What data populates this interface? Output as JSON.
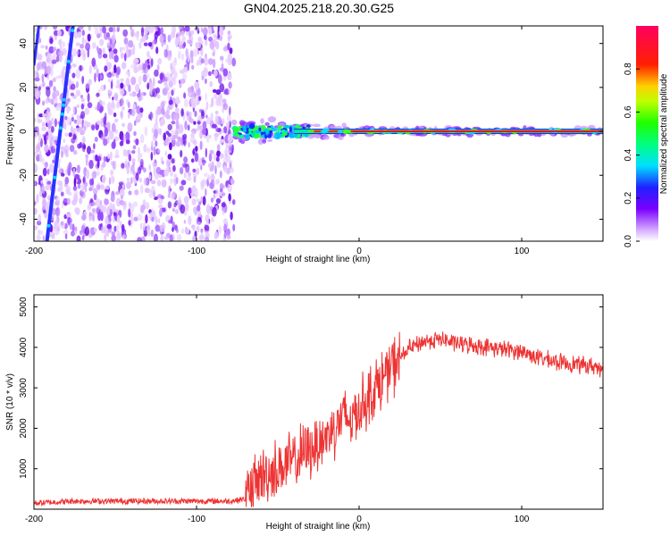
{
  "figure_title": "GN04.2025.218.20.30.G25",
  "chart_data": [
    {
      "type": "heatmap",
      "name": "spectrogram",
      "xlabel": "Height of straight line (km)",
      "ylabel": "Frequency (Hz)",
      "xlim": [
        -200,
        150
      ],
      "ylim": [
        -50,
        48
      ],
      "xticks": [
        -200,
        -100,
        0,
        100
      ],
      "yticks": [
        -40,
        -20,
        0,
        20,
        40
      ],
      "colorbar": {
        "label": "Normalized spectral amplitude",
        "range": [
          0,
          1
        ],
        "ticks": [
          "0.0",
          "0.2",
          "0.4",
          "0.6",
          "0.8"
        ]
      },
      "regions": {
        "noise_band": {
          "x": [
            -200,
            -77
          ],
          "y": [
            -50,
            48
          ],
          "level": 0.1
        },
        "chirp_line": {
          "x": [
            -192,
            -176
          ],
          "y": [
            -50,
            48
          ],
          "level": 0.25
        },
        "signal_line": {
          "x": [
            -77,
            150
          ],
          "y_center": 0,
          "level": 1.0
        }
      },
      "grid": false
    },
    {
      "type": "line",
      "name": "snr",
      "xlabel": "Height of straight line (km)",
      "ylabel": "SNR (10 * v/v)",
      "xlim": [
        -200,
        150
      ],
      "ylim": [
        0,
        5300
      ],
      "xticks": [
        -200,
        -100,
        0,
        100
      ],
      "yticks": [
        1000,
        2000,
        3000,
        4000,
        5000
      ],
      "color": "#ee3333",
      "series": [
        {
          "x": [
            -200,
            -175,
            -150,
            -125,
            -100,
            -80,
            -70,
            -65,
            -60,
            -50,
            -40,
            -30,
            -20,
            -10,
            -5,
            0,
            10,
            20,
            30,
            40,
            50,
            60,
            70,
            80,
            90,
            100,
            110,
            120,
            130,
            140,
            150
          ],
          "values": [
            150,
            200,
            200,
            200,
            200,
            200,
            250,
            600,
            800,
            1000,
            1200,
            1500,
            1800,
            2300,
            2200,
            2500,
            3000,
            3500,
            3950,
            4150,
            4200,
            4100,
            4050,
            4000,
            3950,
            3900,
            3750,
            3650,
            3600,
            3550,
            3500
          ]
        }
      ],
      "grid": false
    }
  ]
}
